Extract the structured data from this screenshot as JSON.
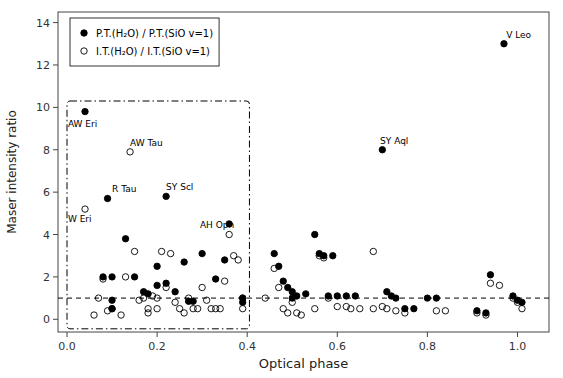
{
  "chart_data": {
    "type": "scatter",
    "xlabel": "Optical phase",
    "ylabel": "Maser intensity ratio",
    "xlim": [
      -0.02,
      1.07
    ],
    "ylim": [
      -0.6,
      14.5
    ],
    "xticks": [
      {
        "value": 0.0,
        "label": "0.0"
      },
      0.2,
      0.4,
      0.6,
      0.8,
      {
        "value": 1.0,
        "label": "1.0"
      }
    ],
    "yticks": [
      0,
      2,
      4,
      6,
      8,
      10,
      12,
      14
    ],
    "legend": "upper left",
    "grid": false,
    "hline": 1.0,
    "box": {
      "x0": 0.0,
      "y0": -0.45,
      "x1": 0.405,
      "y1": 10.3,
      "line_style": "dashdot"
    },
    "series": [
      {
        "name": "P.T.(H₂O) / P.T.(SiO v=1)",
        "color": "#000000",
        "marker": "circle",
        "x": [
          0.04,
          0.08,
          0.09,
          0.1,
          0.1,
          0.1,
          0.13,
          0.15,
          0.17,
          0.18,
          0.2,
          0.2,
          0.22,
          0.22,
          0.24,
          0.26,
          0.27,
          0.28,
          0.3,
          0.33,
          0.35,
          0.36,
          0.39,
          0.39,
          0.46,
          0.47,
          0.48,
          0.49,
          0.5,
          0.5,
          0.51,
          0.53,
          0.55,
          0.56,
          0.57,
          0.59,
          0.58,
          0.6,
          0.62,
          0.64,
          0.7,
          0.71,
          0.72,
          0.73,
          0.75,
          0.77,
          0.8,
          0.82,
          0.91,
          0.93,
          0.94,
          0.97,
          0.99,
          1.0,
          1.01
        ],
        "values": [
          9.8,
          2.0,
          5.7,
          2.0,
          0.9,
          0.5,
          3.8,
          2.0,
          1.3,
          1.2,
          2.5,
          1.6,
          5.8,
          1.7,
          1.3,
          2.7,
          0.85,
          0.85,
          3.1,
          1.9,
          2.8,
          4.5,
          1.0,
          0.8,
          3.1,
          2.5,
          1.8,
          1.5,
          1.3,
          1.0,
          1.1,
          1.2,
          4.0,
          3.1,
          3.0,
          3.0,
          1.1,
          1.1,
          1.1,
          1.1,
          8.0,
          1.3,
          1.1,
          1.0,
          0.5,
          0.5,
          1.0,
          1.0,
          0.4,
          0.3,
          2.1,
          13.0,
          1.1,
          0.9,
          0.8
        ]
      },
      {
        "name": "I.T.(H₂O) / I.T.(SiO v=1)",
        "color": "#000000",
        "marker": "open-circle",
        "x": [
          0.04,
          0.06,
          0.07,
          0.08,
          0.09,
          0.1,
          0.12,
          0.13,
          0.14,
          0.15,
          0.16,
          0.17,
          0.18,
          0.18,
          0.19,
          0.2,
          0.2,
          0.21,
          0.22,
          0.23,
          0.24,
          0.25,
          0.26,
          0.27,
          0.28,
          0.29,
          0.3,
          0.31,
          0.32,
          0.33,
          0.34,
          0.35,
          0.36,
          0.37,
          0.38,
          0.39,
          0.39,
          0.44,
          0.46,
          0.47,
          0.48,
          0.49,
          0.5,
          0.51,
          0.52,
          0.55,
          0.56,
          0.57,
          0.58,
          0.6,
          0.62,
          0.63,
          0.65,
          0.68,
          0.7,
          0.71,
          0.73,
          0.68,
          0.75,
          0.82,
          0.84,
          0.91,
          0.93,
          0.94,
          0.96,
          0.99,
          1.0,
          1.01
        ],
        "values": [
          5.2,
          0.2,
          1.0,
          1.9,
          0.4,
          0.5,
          0.2,
          2.0,
          7.9,
          3.2,
          0.9,
          1.0,
          0.5,
          0.3,
          1.1,
          1.0,
          0.5,
          3.2,
          1.5,
          3.1,
          0.8,
          0.5,
          0.3,
          1.0,
          0.5,
          0.5,
          1.5,
          0.9,
          0.5,
          0.5,
          0.5,
          1.8,
          4.0,
          3.0,
          2.8,
          1.0,
          0.5,
          1.0,
          2.4,
          1.5,
          0.5,
          0.3,
          0.8,
          0.3,
          0.2,
          0.5,
          3.0,
          2.9,
          1.0,
          0.6,
          0.6,
          0.5,
          0.5,
          0.5,
          0.6,
          0.5,
          0.4,
          3.2,
          0.3,
          0.4,
          0.4,
          0.3,
          0.2,
          1.7,
          1.6,
          1.0,
          0.8,
          0.5
        ]
      }
    ],
    "annotations": [
      {
        "text": "AW Eri",
        "x": 0.002,
        "y": 9.0
      },
      {
        "text": "W Eri",
        "x": 0.002,
        "y": 4.5
      },
      {
        "text": "R Tau",
        "x": 0.1,
        "y": 5.9
      },
      {
        "text": "AW Tau",
        "x": 0.14,
        "y": 8.1
      },
      {
        "text": "SY Scl",
        "x": 0.22,
        "y": 6.0
      },
      {
        "text": "AH Oph",
        "x": 0.295,
        "y": 4.2
      },
      {
        "text": "SY Aql",
        "x": 0.695,
        "y": 8.2
      },
      {
        "text": "V Leo",
        "x": 0.975,
        "y": 13.2
      }
    ]
  }
}
